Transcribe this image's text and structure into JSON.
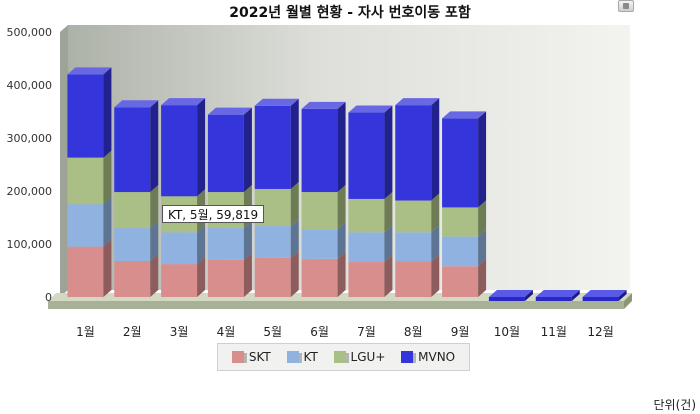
{
  "chart_data": {
    "type": "bar",
    "stacked": true,
    "title": "2022년 월별 현황 - 자사 번호이동 포함",
    "categories": [
      "1월",
      "2월",
      "3월",
      "4월",
      "5월",
      "6월",
      "7월",
      "8월",
      "9월",
      "10월",
      "11월",
      "12월"
    ],
    "series": [
      {
        "name": "SKT",
        "color": "#d98e8e",
        "values": [
          95000,
          68000,
          62000,
          70000,
          74000,
          72000,
          66000,
          67000,
          58000,
          0,
          0,
          0
        ]
      },
      {
        "name": "KT",
        "color": "#8fb2e0",
        "values": [
          80000,
          62000,
          60000,
          60000,
          59819,
          56000,
          56000,
          55000,
          56000,
          0,
          0,
          0
        ]
      },
      {
        "name": "LGU+",
        "color": "#a9bf85",
        "values": [
          88000,
          68000,
          68000,
          68000,
          70000,
          70000,
          63000,
          60000,
          55000,
          0,
          0,
          0
        ]
      },
      {
        "name": "MVNO",
        "color": "#3535dc",
        "values": [
          157000,
          160000,
          172000,
          146000,
          157000,
          157000,
          163000,
          180000,
          168000,
          0,
          0,
          0
        ]
      }
    ],
    "ylim": [
      0,
      500000
    ],
    "yticks": [
      "0",
      "100,000",
      "200,000",
      "300,000",
      "400,000",
      "500,000"
    ],
    "grid": false,
    "legend_position": "bottom"
  },
  "tooltip": {
    "text": "KT, 5월, 59,819"
  },
  "unit": "단위(건)",
  "toolbar": {
    "download_icon": "save-icon"
  }
}
